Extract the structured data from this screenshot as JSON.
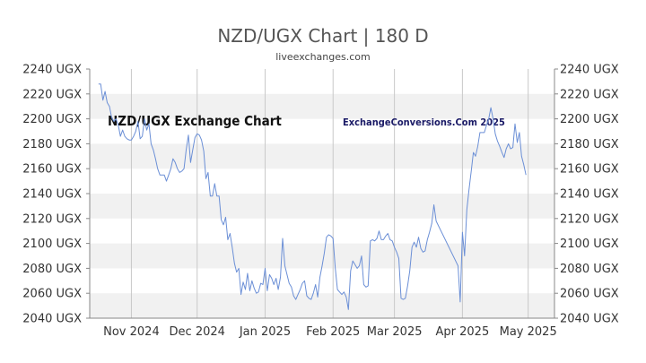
{
  "page": {
    "title": "NZD/UGX Chart | 180 D",
    "subtitle": "liveexchanges.com"
  },
  "chart_data": {
    "type": "line",
    "title": "NZD/UGX Chart | 180 D",
    "subtitle": "liveexchanges.com",
    "annotation_left": "NZD/UGX Exchange Chart",
    "annotation_right": "ExchangeConversions.Com 2025",
    "y_unit": "UGX",
    "ylim": [
      2040,
      2240
    ],
    "y_ticks": [
      2240,
      2220,
      2200,
      2180,
      2160,
      2140,
      2120,
      2100,
      2080,
      2060,
      2040
    ],
    "y_tick_labels": [
      "2240 UGX",
      "2220 UGX",
      "2200 UGX",
      "2180 UGX",
      "2160 UGX",
      "2140 UGX",
      "2120 UGX",
      "2100 UGX",
      "2080 UGX",
      "2060 UGX",
      "2040 UGX"
    ],
    "x_tick_labels": [
      "Nov 2024",
      "Dec 2024",
      "Jan 2025",
      "Feb 2025",
      "Mar 2025",
      "Apr 2025",
      "May 2025"
    ],
    "x_tick_days": [
      19,
      49,
      80,
      111,
      139,
      170,
      200
    ],
    "x_range_days": [
      0,
      212
    ],
    "x_start_date": "2024-10-13",
    "grid": true,
    "legend": "none",
    "colors": {
      "line": "#6b8fd6",
      "band": "#f1f1f1",
      "grid": "#c8c8c8",
      "axis": "#888888"
    },
    "series": [
      {
        "values": [
          [
            4,
            2228
          ],
          [
            5,
            2228
          ],
          [
            6,
            2215
          ],
          [
            7,
            2222
          ],
          [
            8,
            2213
          ],
          [
            9,
            2210
          ],
          [
            10,
            2201
          ],
          [
            11,
            2198
          ],
          [
            12,
            2200
          ],
          [
            13,
            2195
          ],
          [
            14,
            2186
          ],
          [
            15,
            2191
          ],
          [
            16,
            2186
          ],
          [
            17,
            2184
          ],
          [
            18,
            2183
          ],
          [
            19,
            2183
          ],
          [
            20,
            2186
          ],
          [
            21,
            2190
          ],
          [
            22,
            2198
          ],
          [
            23,
            2184
          ],
          [
            24,
            2186
          ],
          [
            25,
            2200
          ],
          [
            26,
            2191
          ],
          [
            27,
            2196
          ],
          [
            28,
            2180
          ],
          [
            29,
            2175
          ],
          [
            30,
            2168
          ],
          [
            31,
            2160
          ],
          [
            32,
            2155
          ],
          [
            33,
            2155
          ],
          [
            34,
            2155
          ],
          [
            35,
            2150
          ],
          [
            36,
            2155
          ],
          [
            37,
            2160
          ],
          [
            38,
            2168
          ],
          [
            39,
            2165
          ],
          [
            40,
            2160
          ],
          [
            41,
            2157
          ],
          [
            42,
            2158
          ],
          [
            43,
            2160
          ],
          [
            44,
            2175
          ],
          [
            45,
            2187
          ],
          [
            46,
            2165
          ],
          [
            47,
            2175
          ],
          [
            48,
            2185
          ],
          [
            49,
            2188
          ],
          [
            50,
            2187
          ],
          [
            51,
            2183
          ],
          [
            52,
            2174
          ],
          [
            53,
            2152
          ],
          [
            54,
            2157
          ],
          [
            55,
            2138
          ],
          [
            56,
            2138
          ],
          [
            57,
            2148
          ],
          [
            58,
            2138
          ],
          [
            59,
            2138
          ],
          [
            60,
            2119
          ],
          [
            61,
            2115
          ],
          [
            62,
            2121
          ],
          [
            63,
            2103
          ],
          [
            64,
            2108
          ],
          [
            65,
            2097
          ],
          [
            66,
            2084
          ],
          [
            67,
            2077
          ],
          [
            68,
            2080
          ],
          [
            69,
            2059
          ],
          [
            70,
            2069
          ],
          [
            71,
            2063
          ],
          [
            72,
            2076
          ],
          [
            73,
            2062
          ],
          [
            74,
            2070
          ],
          [
            75,
            2064
          ],
          [
            76,
            2060
          ],
          [
            77,
            2061
          ],
          [
            78,
            2068
          ],
          [
            79,
            2067
          ],
          [
            80,
            2080
          ],
          [
            81,
            2062
          ],
          [
            82,
            2075
          ],
          [
            83,
            2072
          ],
          [
            84,
            2067
          ],
          [
            85,
            2072
          ],
          [
            86,
            2063
          ],
          [
            87,
            2073
          ],
          [
            88,
            2104
          ],
          [
            89,
            2082
          ],
          [
            90,
            2075
          ],
          [
            91,
            2068
          ],
          [
            92,
            2065
          ],
          [
            93,
            2058
          ],
          [
            94,
            2055
          ],
          [
            95,
            2059
          ],
          [
            96,
            2063
          ],
          [
            97,
            2068
          ],
          [
            98,
            2070
          ],
          [
            99,
            2058
          ],
          [
            100,
            2056
          ],
          [
            101,
            2055
          ],
          [
            102,
            2060
          ],
          [
            103,
            2067
          ],
          [
            104,
            2057
          ],
          [
            105,
            2073
          ],
          [
            106,
            2082
          ],
          [
            107,
            2092
          ],
          [
            108,
            2105
          ],
          [
            109,
            2107
          ],
          [
            110,
            2106
          ],
          [
            111,
            2104
          ],
          [
            112,
            2080
          ],
          [
            113,
            2063
          ],
          [
            114,
            2061
          ],
          [
            115,
            2059
          ],
          [
            116,
            2061
          ],
          [
            117,
            2057
          ],
          [
            118,
            2047
          ],
          [
            119,
            2078
          ],
          [
            120,
            2086
          ],
          [
            121,
            2083
          ],
          [
            122,
            2080
          ],
          [
            123,
            2082
          ],
          [
            124,
            2090
          ],
          [
            125,
            2067
          ],
          [
            126,
            2065
          ],
          [
            127,
            2066
          ],
          [
            128,
            2102
          ],
          [
            129,
            2103
          ],
          [
            130,
            2102
          ],
          [
            131,
            2104
          ],
          [
            132,
            2110
          ],
          [
            133,
            2103
          ],
          [
            134,
            2103
          ],
          [
            135,
            2106
          ],
          [
            136,
            2108
          ],
          [
            137,
            2103
          ],
          [
            138,
            2102
          ],
          [
            139,
            2097
          ],
          [
            140,
            2093
          ],
          [
            141,
            2088
          ],
          [
            142,
            2056
          ],
          [
            143,
            2055
          ],
          [
            144,
            2056
          ],
          [
            145,
            2066
          ],
          [
            146,
            2078
          ],
          [
            147,
            2097
          ],
          [
            148,
            2101
          ],
          [
            149,
            2097
          ],
          [
            150,
            2105
          ],
          [
            151,
            2096
          ],
          [
            152,
            2093
          ],
          [
            153,
            2094
          ],
          [
            154,
            2103
          ],
          [
            155,
            2109
          ],
          [
            156,
            2116
          ],
          [
            157,
            2131
          ],
          [
            158,
            2118
          ],
          [
            168,
            2082
          ],
          [
            169,
            2053
          ],
          [
            170,
            2109
          ],
          [
            171,
            2090
          ],
          [
            172,
            2127
          ],
          [
            173,
            2143
          ],
          [
            174,
            2158
          ],
          [
            175,
            2173
          ],
          [
            176,
            2170
          ],
          [
            177,
            2178
          ],
          [
            178,
            2189
          ],
          [
            179,
            2189
          ],
          [
            180,
            2189
          ],
          [
            181,
            2195
          ],
          [
            182,
            2200
          ],
          [
            183,
            2209
          ],
          [
            184,
            2200
          ],
          [
            185,
            2188
          ],
          [
            186,
            2182
          ],
          [
            187,
            2178
          ],
          [
            188,
            2173
          ],
          [
            189,
            2169
          ],
          [
            190,
            2176
          ],
          [
            191,
            2180
          ],
          [
            192,
            2176
          ],
          [
            193,
            2177
          ],
          [
            194,
            2196
          ],
          [
            195,
            2181
          ],
          [
            196,
            2189
          ],
          [
            197,
            2170
          ],
          [
            198,
            2163
          ],
          [
            199,
            2155
          ]
        ]
      }
    ]
  }
}
